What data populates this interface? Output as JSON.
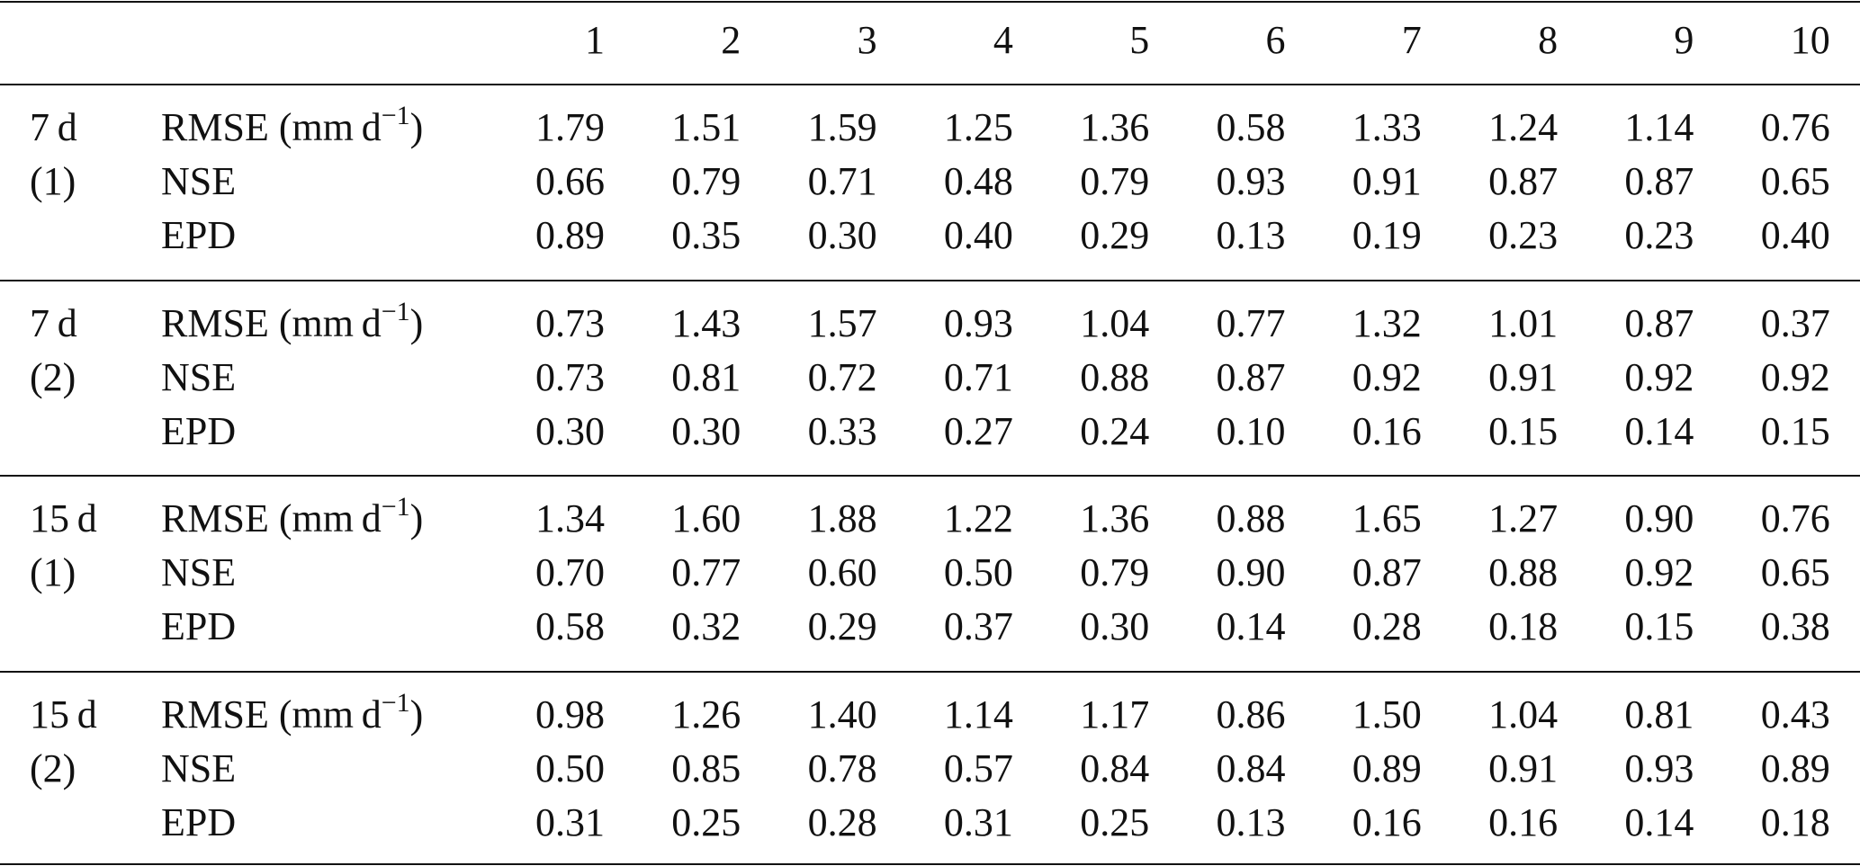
{
  "table": {
    "columns": [
      "1",
      "2",
      "3",
      "4",
      "5",
      "6",
      "7",
      "8",
      "9",
      "10"
    ],
    "groups": [
      {
        "label": [
          "7 d",
          "(1)"
        ],
        "rows": [
          {
            "label": "RMSE (mm d",
            "label_sup": "−1",
            "label_end": ")",
            "values": [
              "1.79",
              "1.51",
              "1.59",
              "1.25",
              "1.36",
              "0.58",
              "1.33",
              "1.24",
              "1.14",
              "0.76"
            ]
          },
          {
            "label": "NSE",
            "values": [
              "0.66",
              "0.79",
              "0.71",
              "0.48",
              "0.79",
              "0.93",
              "0.91",
              "0.87",
              "0.87",
              "0.65"
            ]
          },
          {
            "label": "EPD",
            "values": [
              "0.89",
              "0.35",
              "0.30",
              "0.40",
              "0.29",
              "0.13",
              "0.19",
              "0.23",
              "0.23",
              "0.40"
            ]
          }
        ]
      },
      {
        "label": [
          "7 d",
          "(2)"
        ],
        "rows": [
          {
            "label": "RMSE (mm d",
            "label_sup": "−1",
            "label_end": ")",
            "values": [
              "0.73",
              "1.43",
              "1.57",
              "0.93",
              "1.04",
              "0.77",
              "1.32",
              "1.01",
              "0.87",
              "0.37"
            ]
          },
          {
            "label": "NSE",
            "values": [
              "0.73",
              "0.81",
              "0.72",
              "0.71",
              "0.88",
              "0.87",
              "0.92",
              "0.91",
              "0.92",
              "0.92"
            ]
          },
          {
            "label": "EPD",
            "values": [
              "0.30",
              "0.30",
              "0.33",
              "0.27",
              "0.24",
              "0.10",
              "0.16",
              "0.15",
              "0.14",
              "0.15"
            ]
          }
        ]
      },
      {
        "label": [
          "15 d",
          "(1)"
        ],
        "rows": [
          {
            "label": "RMSE (mm d",
            "label_sup": "−1",
            "label_end": ")",
            "values": [
              "1.34",
              "1.60",
              "1.88",
              "1.22",
              "1.36",
              "0.88",
              "1.65",
              "1.27",
              "0.90",
              "0.76"
            ]
          },
          {
            "label": "NSE",
            "values": [
              "0.70",
              "0.77",
              "0.60",
              "0.50",
              "0.79",
              "0.90",
              "0.87",
              "0.88",
              "0.92",
              "0.65"
            ]
          },
          {
            "label": "EPD",
            "values": [
              "0.58",
              "0.32",
              "0.29",
              "0.37",
              "0.30",
              "0.14",
              "0.28",
              "0.18",
              "0.15",
              "0.38"
            ]
          }
        ]
      },
      {
        "label": [
          "15 d",
          "(2)"
        ],
        "rows": [
          {
            "label": "RMSE (mm d",
            "label_sup": "−1",
            "label_end": ")",
            "values": [
              "0.98",
              "1.26",
              "1.40",
              "1.14",
              "1.17",
              "0.86",
              "1.50",
              "1.04",
              "0.81",
              "0.43"
            ]
          },
          {
            "label": "NSE",
            "values": [
              "0.50",
              "0.85",
              "0.78",
              "0.57",
              "0.84",
              "0.84",
              "0.89",
              "0.91",
              "0.93",
              "0.89"
            ]
          },
          {
            "label": "EPD",
            "values": [
              "0.31",
              "0.25",
              "0.28",
              "0.31",
              "0.25",
              "0.13",
              "0.16",
              "0.16",
              "0.14",
              "0.18"
            ]
          }
        ]
      }
    ]
  }
}
